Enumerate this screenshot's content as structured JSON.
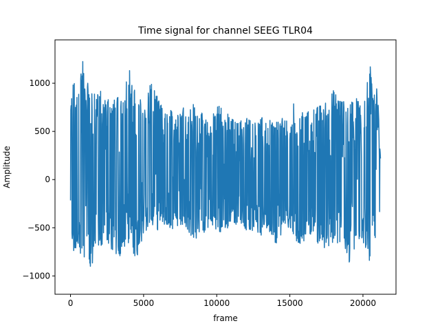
{
  "chart_data": {
    "type": "line",
    "title": "Time signal for channel SEEG TLR04",
    "xlabel": "frame",
    "ylabel": "Amplitude",
    "xlim": [
      -1060,
      22260
    ],
    "ylim": [
      -1190,
      1450
    ],
    "xticks": [
      0,
      5000,
      10000,
      15000,
      20000
    ],
    "yticks": [
      -1000,
      -500,
      0,
      500,
      1000
    ],
    "grid": false,
    "legend": "none",
    "series": [
      {
        "color": "#1f77b4",
        "n_frames": 21200,
        "envelope": {
          "x": [
            0,
            100,
            200,
            400,
            600,
            800,
            1000,
            1200,
            1400,
            1700,
            2000,
            2300,
            2600,
            3000,
            3500,
            4000,
            4500,
            5000,
            5500,
            6000,
            6500,
            7000,
            7500,
            8000,
            8500,
            9000,
            9500,
            10000,
            10500,
            11000,
            11500,
            12000,
            12500,
            13000,
            13500,
            14000,
            14500,
            15000,
            15500,
            16000,
            16500,
            17000,
            17500,
            18000,
            18500,
            19000,
            19500,
            20000,
            20500,
            21000,
            21200
          ],
          "max": [
            780,
            980,
            1060,
            1000,
            1200,
            1340,
            1050,
            1100,
            900,
            1000,
            980,
            850,
            900,
            850,
            900,
            1200,
            900,
            820,
            1050,
            850,
            700,
            750,
            800,
            850,
            800,
            700,
            580,
            820,
            750,
            650,
            600,
            700,
            600,
            650,
            700,
            600,
            650,
            700,
            900,
            700,
            750,
            780,
            850,
            950,
            850,
            800,
            900,
            780,
            1200,
            1000,
            250
          ],
          "min": [
            -300,
            -650,
            -870,
            -700,
            -850,
            -880,
            -800,
            -900,
            -1080,
            -700,
            -800,
            -600,
            -750,
            -840,
            -800,
            -700,
            -850,
            -600,
            -500,
            -550,
            -480,
            -550,
            -500,
            -550,
            -650,
            -600,
            -500,
            -550,
            -600,
            -450,
            -500,
            -550,
            -580,
            -600,
            -500,
            -720,
            -550,
            -500,
            -700,
            -680,
            -600,
            -700,
            -750,
            -750,
            -700,
            -900,
            -700,
            -680,
            -900,
            -700,
            -200
          ]
        }
      }
    ]
  }
}
